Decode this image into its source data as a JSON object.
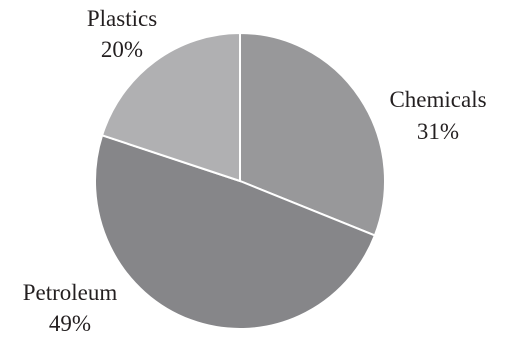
{
  "chart_data": {
    "type": "pie",
    "title": "",
    "start_angle_deg": 90,
    "direction": "clockwise",
    "slices": [
      {
        "label": "Chemicals",
        "percent_label": "31%",
        "value": 31,
        "color": "#98989a"
      },
      {
        "label": "Petroleum",
        "percent_label": "49%",
        "value": 49,
        "color": "#868689"
      },
      {
        "label": "Plastics",
        "percent_label": "20%",
        "value": 20,
        "color": "#b0b0b2"
      }
    ],
    "slice_border_color": "#ffffff",
    "legend": "none",
    "label_placement": "outside"
  }
}
